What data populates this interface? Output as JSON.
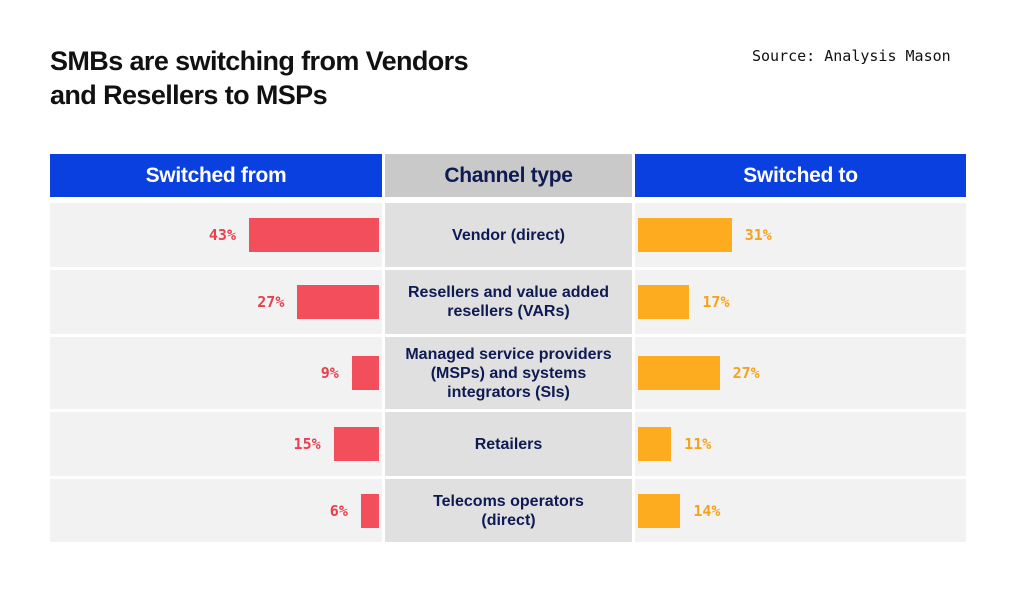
{
  "title": {
    "line1": "SMBs are switching from Vendors",
    "line2": "and Resellers to MSPs"
  },
  "source": "Source: Analysis Mason",
  "headers": {
    "from": "Switched from",
    "channel": "Channel type",
    "to": "Switched to"
  },
  "colors": {
    "header_blue": "#0a3fe0",
    "header_grey": "#c9c9c9",
    "from_bar": "#f24e5c",
    "to_bar": "#fdab1f",
    "channel_text": "#0e1a52"
  },
  "chart_data": {
    "type": "bar",
    "title": "SMBs are switching from Vendors and Resellers to MSPs",
    "orientation": "horizontal-butterfly",
    "categories": [
      [
        "Vendor (direct)"
      ],
      [
        "Resellers and value added",
        "resellers (VARs)"
      ],
      [
        "Managed service providers",
        "(MSPs) and systems",
        "integrators (SIs)"
      ],
      [
        "Retailers"
      ],
      [
        "Telecoms operators",
        "(direct)"
      ]
    ],
    "series": [
      {
        "name": "Switched from",
        "values": [
          43,
          27,
          9,
          15,
          6
        ],
        "labels": [
          "43%",
          "27%",
          "9%",
          "15%",
          "6%"
        ]
      },
      {
        "name": "Switched to",
        "values": [
          31,
          17,
          27,
          11,
          14
        ],
        "labels": [
          "31%",
          "17%",
          "27%",
          "11%",
          "14%"
        ]
      }
    ],
    "unit": "%",
    "xlim": [
      0,
      43
    ]
  }
}
